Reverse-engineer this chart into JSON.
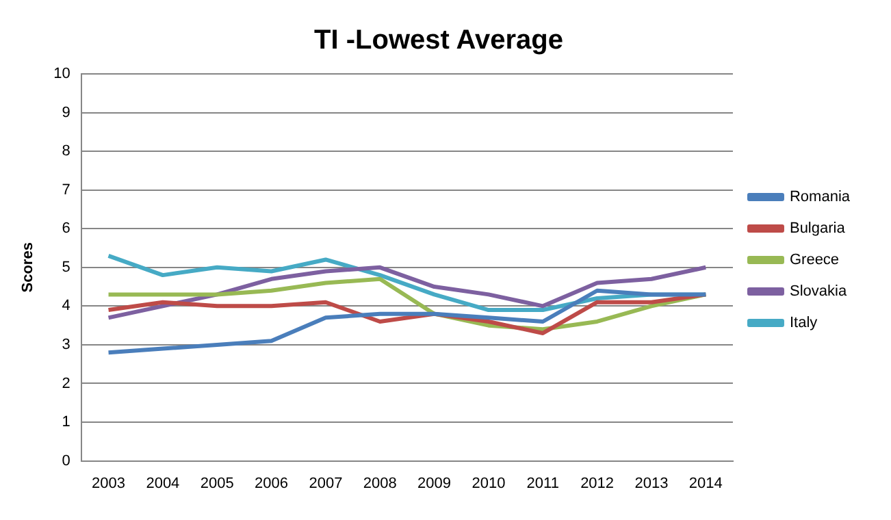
{
  "chart_data": {
    "type": "line",
    "title": "TI -Lowest Average",
    "ylabel": "Scores",
    "categories": [
      "2003",
      "2004",
      "2005",
      "2006",
      "2007",
      "2008",
      "2009",
      "2010",
      "2011",
      "2012",
      "2013",
      "2014"
    ],
    "series": [
      {
        "name": "Romania",
        "color": "#4a7ebb",
        "values": [
          2.8,
          2.9,
          3.0,
          3.1,
          3.7,
          3.8,
          3.8,
          3.7,
          3.6,
          4.4,
          4.3,
          4.3
        ]
      },
      {
        "name": "Bulgaria",
        "color": "#be4b48",
        "values": [
          3.9,
          4.1,
          4.0,
          4.0,
          4.1,
          3.6,
          3.8,
          3.6,
          3.3,
          4.1,
          4.1,
          4.3
        ]
      },
      {
        "name": "Greece",
        "color": "#98b954",
        "values": [
          4.3,
          4.3,
          4.3,
          4.4,
          4.6,
          4.7,
          3.8,
          3.5,
          3.4,
          3.6,
          4.0,
          4.3
        ]
      },
      {
        "name": "Slovakia",
        "color": "#7d60a0",
        "values": [
          3.7,
          4.0,
          4.3,
          4.7,
          4.9,
          5.0,
          4.5,
          4.3,
          4.0,
          4.6,
          4.7,
          5.0
        ]
      },
      {
        "name": "Italy",
        "color": "#46aac5",
        "values": [
          5.3,
          4.8,
          5.0,
          4.9,
          5.2,
          4.8,
          4.3,
          3.9,
          3.9,
          4.2,
          4.3,
          4.3
        ]
      }
    ],
    "ylim": [
      0,
      10
    ],
    "yticks": [
      0,
      1,
      2,
      3,
      4,
      5,
      6,
      7,
      8,
      9,
      10
    ],
    "grid": "y",
    "legend": "right",
    "marker": "none",
    "line_style": "solid"
  }
}
